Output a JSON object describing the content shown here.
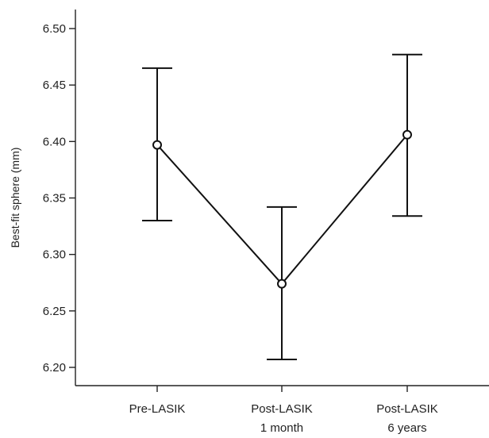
{
  "chart_data": {
    "type": "line",
    "title": "",
    "xlabel": "",
    "ylabel": "Best-fit sphere (mm)",
    "categories": [
      [
        "Pre-LASIK"
      ],
      [
        "Post-LASIK",
        "1 month"
      ],
      [
        "Post-LASIK",
        "6 years"
      ]
    ],
    "series": [
      {
        "values": [
          6.397,
          6.274,
          6.406
        ],
        "error_lower": [
          6.33,
          6.207,
          6.334
        ],
        "error_upper": [
          6.465,
          6.342,
          6.477
        ]
      }
    ],
    "yticks": [
      "6.20",
      "6.25",
      "6.30",
      "6.35",
      "6.40",
      "6.45",
      "6.50"
    ],
    "ylim": [
      6.19,
      6.52
    ],
    "grid": false,
    "marker": "open-circle",
    "error_bars": true
  }
}
